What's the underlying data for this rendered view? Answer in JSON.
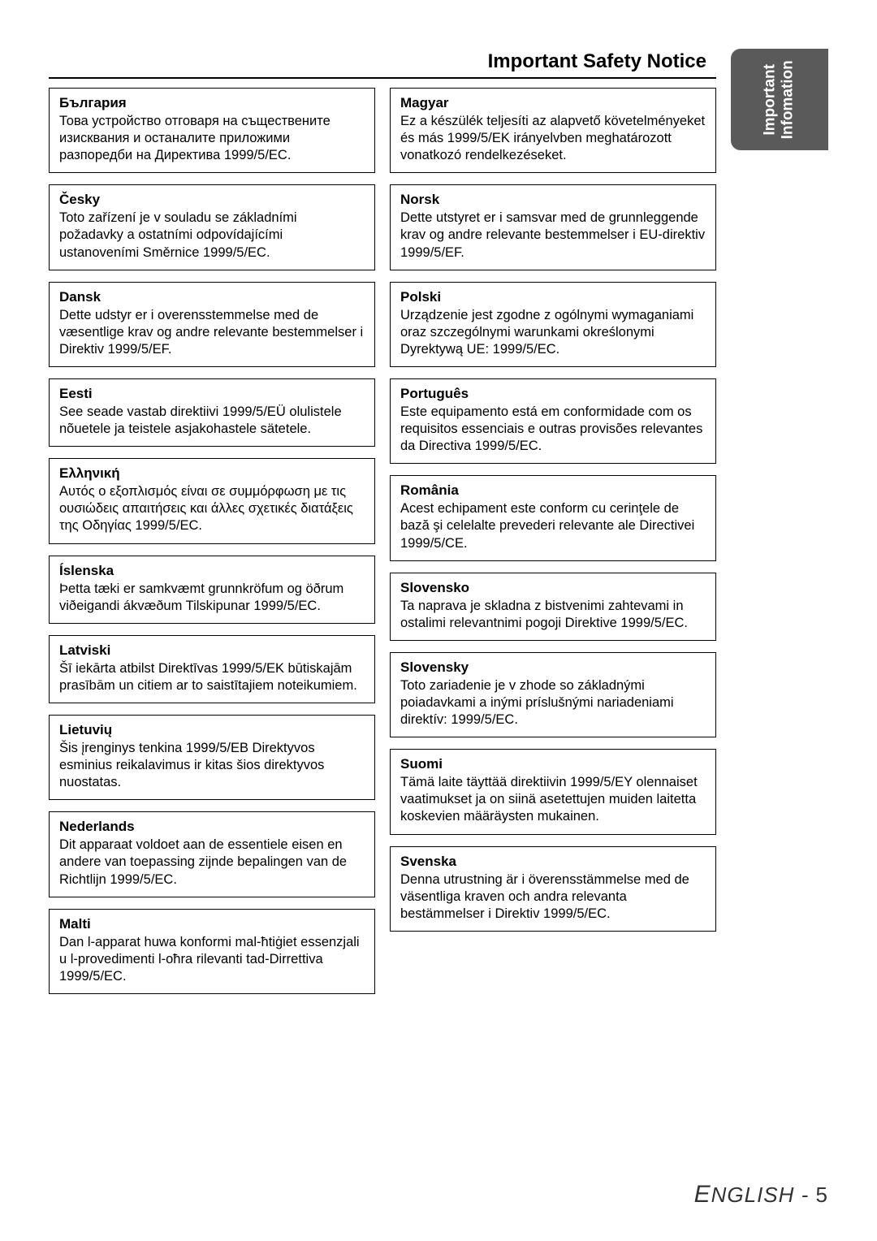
{
  "page": {
    "title": "Important Safety Notice",
    "sideTab": "Important\nInfomation",
    "footer_lang": "ENGLISH",
    "footer_sep": " - ",
    "footer_page": "5"
  },
  "left": [
    {
      "lang": "България",
      "text": "Това устройство отговаря на съществените изисквания и останалите приложими разпоредби на Директива 1999/5/EC."
    },
    {
      "lang": "Česky",
      "text": "Toto zařízení je v souladu se základními požadavky a ostatními odpovídajícími ustanoveními Směrnice 1999/5/EC."
    },
    {
      "lang": "Dansk",
      "text": "Dette udstyr er i overensstemmelse med de væsentlige krav og andre relevante bestemmelser i Direktiv 1999/5/EF."
    },
    {
      "lang": "Eesti",
      "text": "See seade vastab direktiivi 1999/5/EÜ olulistele nõuetele ja teistele asjakohastele sätetele."
    },
    {
      "lang": "Ελληνική",
      "text": "Αυτός ο εξοπλισμός είναι σε συμμόρφωση με τις ουσιώδεις απαιτήσεις και άλλες σχετικές διατάξεις της Οδηγίας 1999/5/EC."
    },
    {
      "lang": "Íslenska",
      "text": "Þetta tæki er samkvæmt grunnkröfum og öðrum viðeigandi ákvæðum Tilskipunar 1999/5/EC."
    },
    {
      "lang": "Latviski",
      "text": "Šī iekārta atbilst Direktīvas 1999/5/EK būtiskajām prasībām un citiem ar to saistītajiem noteikumiem."
    },
    {
      "lang": "Lietuvių",
      "text": "Šis įrenginys tenkina 1999/5/EB Direktyvos esminius reikalavimus ir kitas šios direktyvos nuostatas."
    },
    {
      "lang": "Nederlands",
      "text": "Dit apparaat voldoet aan de essentiele eisen en andere van toepassing zijnde bepalingen van de Richtlijn 1999/5/EC."
    },
    {
      "lang": "Malti",
      "text": "Dan l-apparat huwa konformi mal-ħtiġiet essenzjali u l-provedimenti l-oħra rilevanti tad-Dirrettiva 1999/5/EC."
    }
  ],
  "right": [
    {
      "lang": "Magyar",
      "text": "Ez a készülék teljesíti az alapvető követelményeket és más 1999/5/EK irányelvben meghatározott vonatkozó rendelkezéseket."
    },
    {
      "lang": "Norsk",
      "text": "Dette utstyret er i samsvar med de grunnleggende krav og andre relevante bestemmelser i EU-direktiv 1999/5/EF."
    },
    {
      "lang": "Polski",
      "text": "Urządzenie jest zgodne z ogólnymi wymaganiami oraz szczególnymi warunkami określonymi Dyrektywą UE: 1999/5/EC."
    },
    {
      "lang": "Português",
      "text": "Este equipamento está em conformidade com os requisitos essenciais e outras provisões relevantes da Directiva 1999/5/EC."
    },
    {
      "lang": "România",
      "text": "Acest echipament este conform cu cerinţele de bază şi celelalte prevederi relevante ale Directivei 1999/5/CE."
    },
    {
      "lang": "Slovensko",
      "text": "Ta naprava je skladna z bistvenimi zahtevami in ostalimi relevantnimi pogoji Direktive 1999/5/EC."
    },
    {
      "lang": "Slovensky",
      "text": "Toto zariadenie je v zhode so základnými poiadavkami a inými príslušnými nariadeniami direktív: 1999/5/EC."
    },
    {
      "lang": "Suomi",
      "text": "Tämä laite täyttää direktiivin 1999/5/EY olennaiset vaatimukset ja on siinä asetettujen muiden laitetta koskevien määräysten mukainen."
    },
    {
      "lang": "Svenska",
      "text": "Denna utrustning är i överensstämmelse med de väsentliga kraven och andra relevanta bestämmelser i Direktiv 1999/5/EC."
    }
  ]
}
